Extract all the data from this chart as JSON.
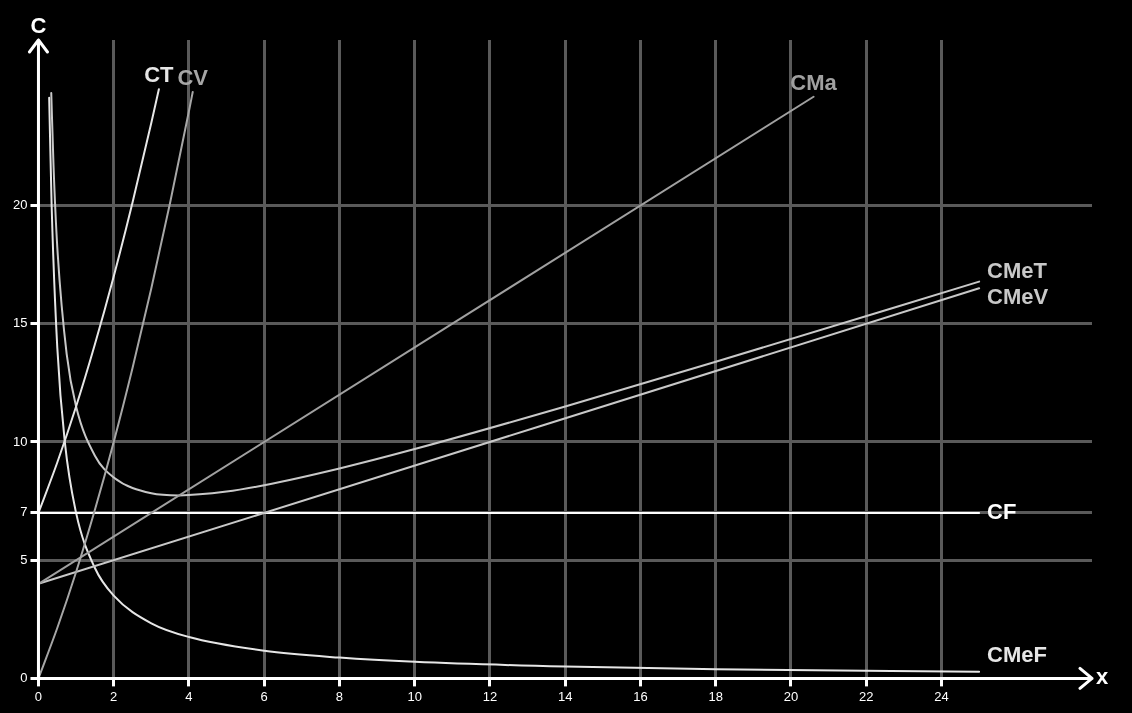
{
  "chart_data": {
    "type": "line",
    "xlabel": "x",
    "ylabel": "C",
    "xlim": [
      0,
      28
    ],
    "ylim": [
      0,
      27
    ],
    "xticks": [
      0,
      2,
      4,
      6,
      8,
      10,
      12,
      14,
      16,
      18,
      20,
      22,
      24
    ],
    "yticks": [
      0,
      5,
      7,
      10,
      15,
      20
    ],
    "grid": true,
    "legend": false,
    "marker": "none",
    "line_style": "solid",
    "series": [
      {
        "name": "CT",
        "color": "#e6e6e6",
        "x": [
          0,
          0.5,
          1,
          1.5,
          2,
          2.5,
          3,
          3.2
        ],
        "values": [
          7,
          9.13,
          11.5,
          14.13,
          17,
          20.13,
          23.5,
          24.92
        ]
      },
      {
        "name": "CV",
        "color": "#a6a6a6",
        "x": [
          0,
          0.5,
          1,
          1.5,
          2,
          2.5,
          3,
          3.5,
          4,
          4.1
        ],
        "values": [
          0,
          2.13,
          4.5,
          7.13,
          10,
          13.13,
          16.5,
          20.13,
          24,
          24.8
        ]
      },
      {
        "name": "CMa",
        "color": "#a0a0a0",
        "x": [
          0,
          20.6
        ],
        "values": [
          4,
          24.6
        ]
      },
      {
        "name": "CMeT",
        "color": "#c8c8c8",
        "x": [
          0.34,
          0.4,
          0.5,
          0.75,
          1,
          1.5,
          2,
          3,
          3.74,
          5,
          6,
          8,
          10,
          14,
          18,
          25
        ],
        "values": [
          24.76,
          21.7,
          18.25,
          13.71,
          11.5,
          9.42,
          8.5,
          7.83,
          7.74,
          7.9,
          8.17,
          8.88,
          9.7,
          11.5,
          13.39,
          16.78
        ]
      },
      {
        "name": "CMeV",
        "color": "#c8c8c8",
        "x": [
          0,
          25
        ],
        "values": [
          4,
          16.5
        ]
      },
      {
        "name": "CF",
        "color": "#ffffff",
        "x": [
          0,
          25
        ],
        "values": [
          7,
          7
        ]
      },
      {
        "name": "CMeF",
        "color": "#e6e6e6",
        "x": [
          0.285,
          0.35,
          0.5,
          0.7,
          1,
          1.5,
          2,
          3,
          4,
          6,
          8,
          10,
          14,
          18,
          25
        ],
        "values": [
          24.56,
          20,
          14,
          10,
          7,
          4.67,
          3.5,
          2.33,
          1.75,
          1.17,
          0.88,
          0.7,
          0.5,
          0.39,
          0.28
        ]
      }
    ]
  }
}
